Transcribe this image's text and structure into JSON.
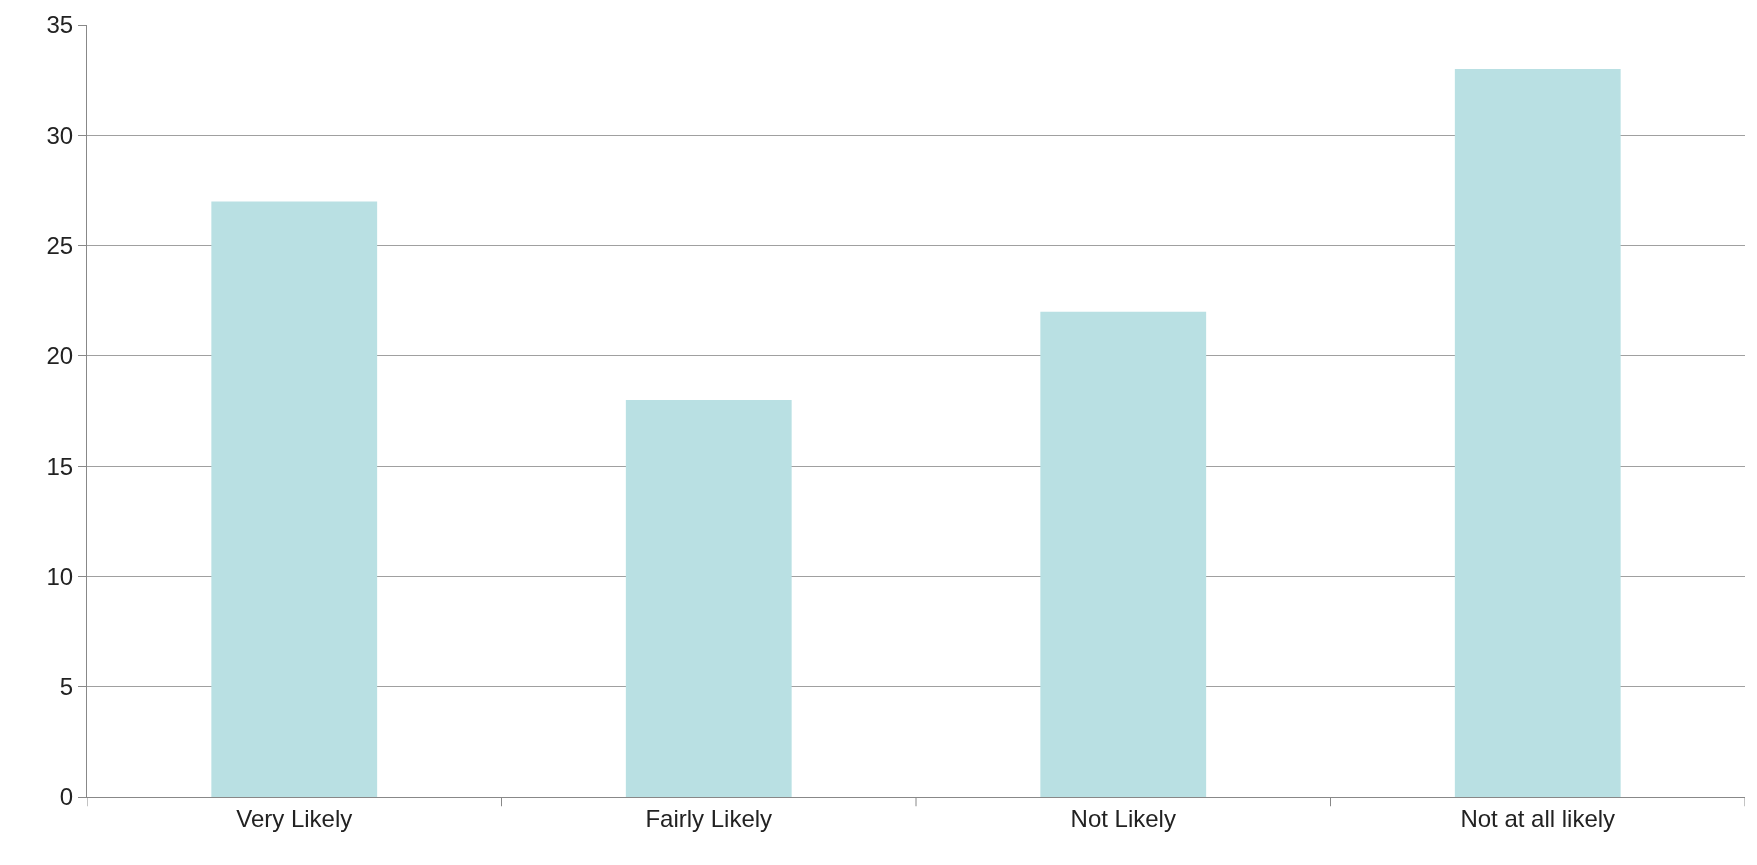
{
  "chart_data": {
    "type": "bar",
    "categories": [
      "Very Likely",
      "Fairly Likely",
      "Not Likely",
      "Not at all likely"
    ],
    "values": [
      27,
      18,
      22,
      33
    ],
    "color": "#b9e0e3",
    "ylim": [
      0,
      35
    ],
    "yticks": [
      0,
      5,
      10,
      15,
      20,
      25,
      30,
      35
    ],
    "grid": "y"
  }
}
